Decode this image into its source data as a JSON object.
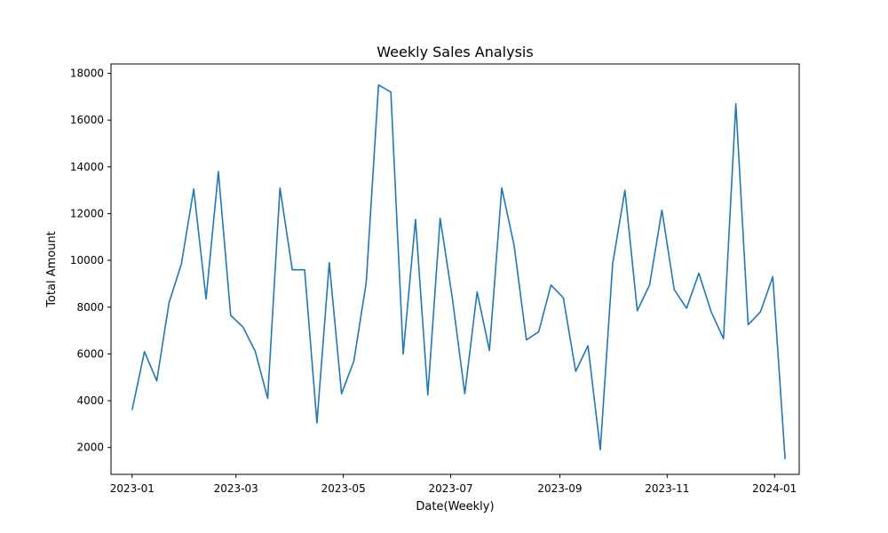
{
  "chart_data": {
    "type": "line",
    "title": "Weekly Sales Analysis",
    "xlabel": "Date(Weekly)",
    "ylabel": "Total Amount",
    "xlim": [
      "2022-12-20",
      "2024-01-15"
    ],
    "ylim": [
      850,
      18400
    ],
    "x_ticks": [
      "2023-01-01",
      "2023-03-01",
      "2023-05-01",
      "2023-07-01",
      "2023-09-01",
      "2023-11-01",
      "2024-01-01"
    ],
    "x_tick_labels": [
      "2023-01",
      "2023-03",
      "2023-05",
      "2023-07",
      "2023-09",
      "2023-11",
      "2024-01"
    ],
    "y_ticks": [
      2000,
      4000,
      6000,
      8000,
      10000,
      12000,
      14000,
      16000,
      18000
    ],
    "y_tick_labels": [
      "2000",
      "4000",
      "6000",
      "8000",
      "10000",
      "12000",
      "14000",
      "16000",
      "18000"
    ],
    "grid": false,
    "series": [
      {
        "color": "#1f77b4",
        "x": [
          "2023-01-01",
          "2023-01-08",
          "2023-01-15",
          "2023-01-22",
          "2023-01-29",
          "2023-02-05",
          "2023-02-12",
          "2023-02-19",
          "2023-02-26",
          "2023-03-05",
          "2023-03-12",
          "2023-03-19",
          "2023-03-26",
          "2023-04-02",
          "2023-04-09",
          "2023-04-16",
          "2023-04-23",
          "2023-04-30",
          "2023-05-07",
          "2023-05-14",
          "2023-05-21",
          "2023-05-28",
          "2023-06-04",
          "2023-06-11",
          "2023-06-18",
          "2023-06-25",
          "2023-07-02",
          "2023-07-09",
          "2023-07-16",
          "2023-07-23",
          "2023-07-30",
          "2023-08-06",
          "2023-08-13",
          "2023-08-20",
          "2023-08-27",
          "2023-09-03",
          "2023-09-10",
          "2023-09-17",
          "2023-09-24",
          "2023-10-01",
          "2023-10-08",
          "2023-10-15",
          "2023-10-22",
          "2023-10-29",
          "2023-11-05",
          "2023-11-12",
          "2023-11-19",
          "2023-11-26",
          "2023-12-03",
          "2023-12-10",
          "2023-12-17",
          "2023-12-24",
          "2023-12-31",
          "2024-01-07"
        ],
        "y": [
          3600,
          6100,
          4850,
          8200,
          9850,
          13050,
          8350,
          13800,
          7650,
          7150,
          6100,
          4100,
          13100,
          9600,
          9600,
          3050,
          9900,
          4300,
          5700,
          9050,
          17500,
          17200,
          6000,
          11750,
          4250,
          11800,
          8350,
          4300,
          8650,
          6150,
          13100,
          10650,
          6600,
          6950,
          8950,
          8400,
          5250,
          6350,
          1900,
          9850,
          13000,
          7850,
          8950,
          12150,
          8750,
          7950,
          9450,
          7800,
          6650,
          16700,
          7250,
          7800,
          9300,
          1500
        ]
      }
    ]
  }
}
